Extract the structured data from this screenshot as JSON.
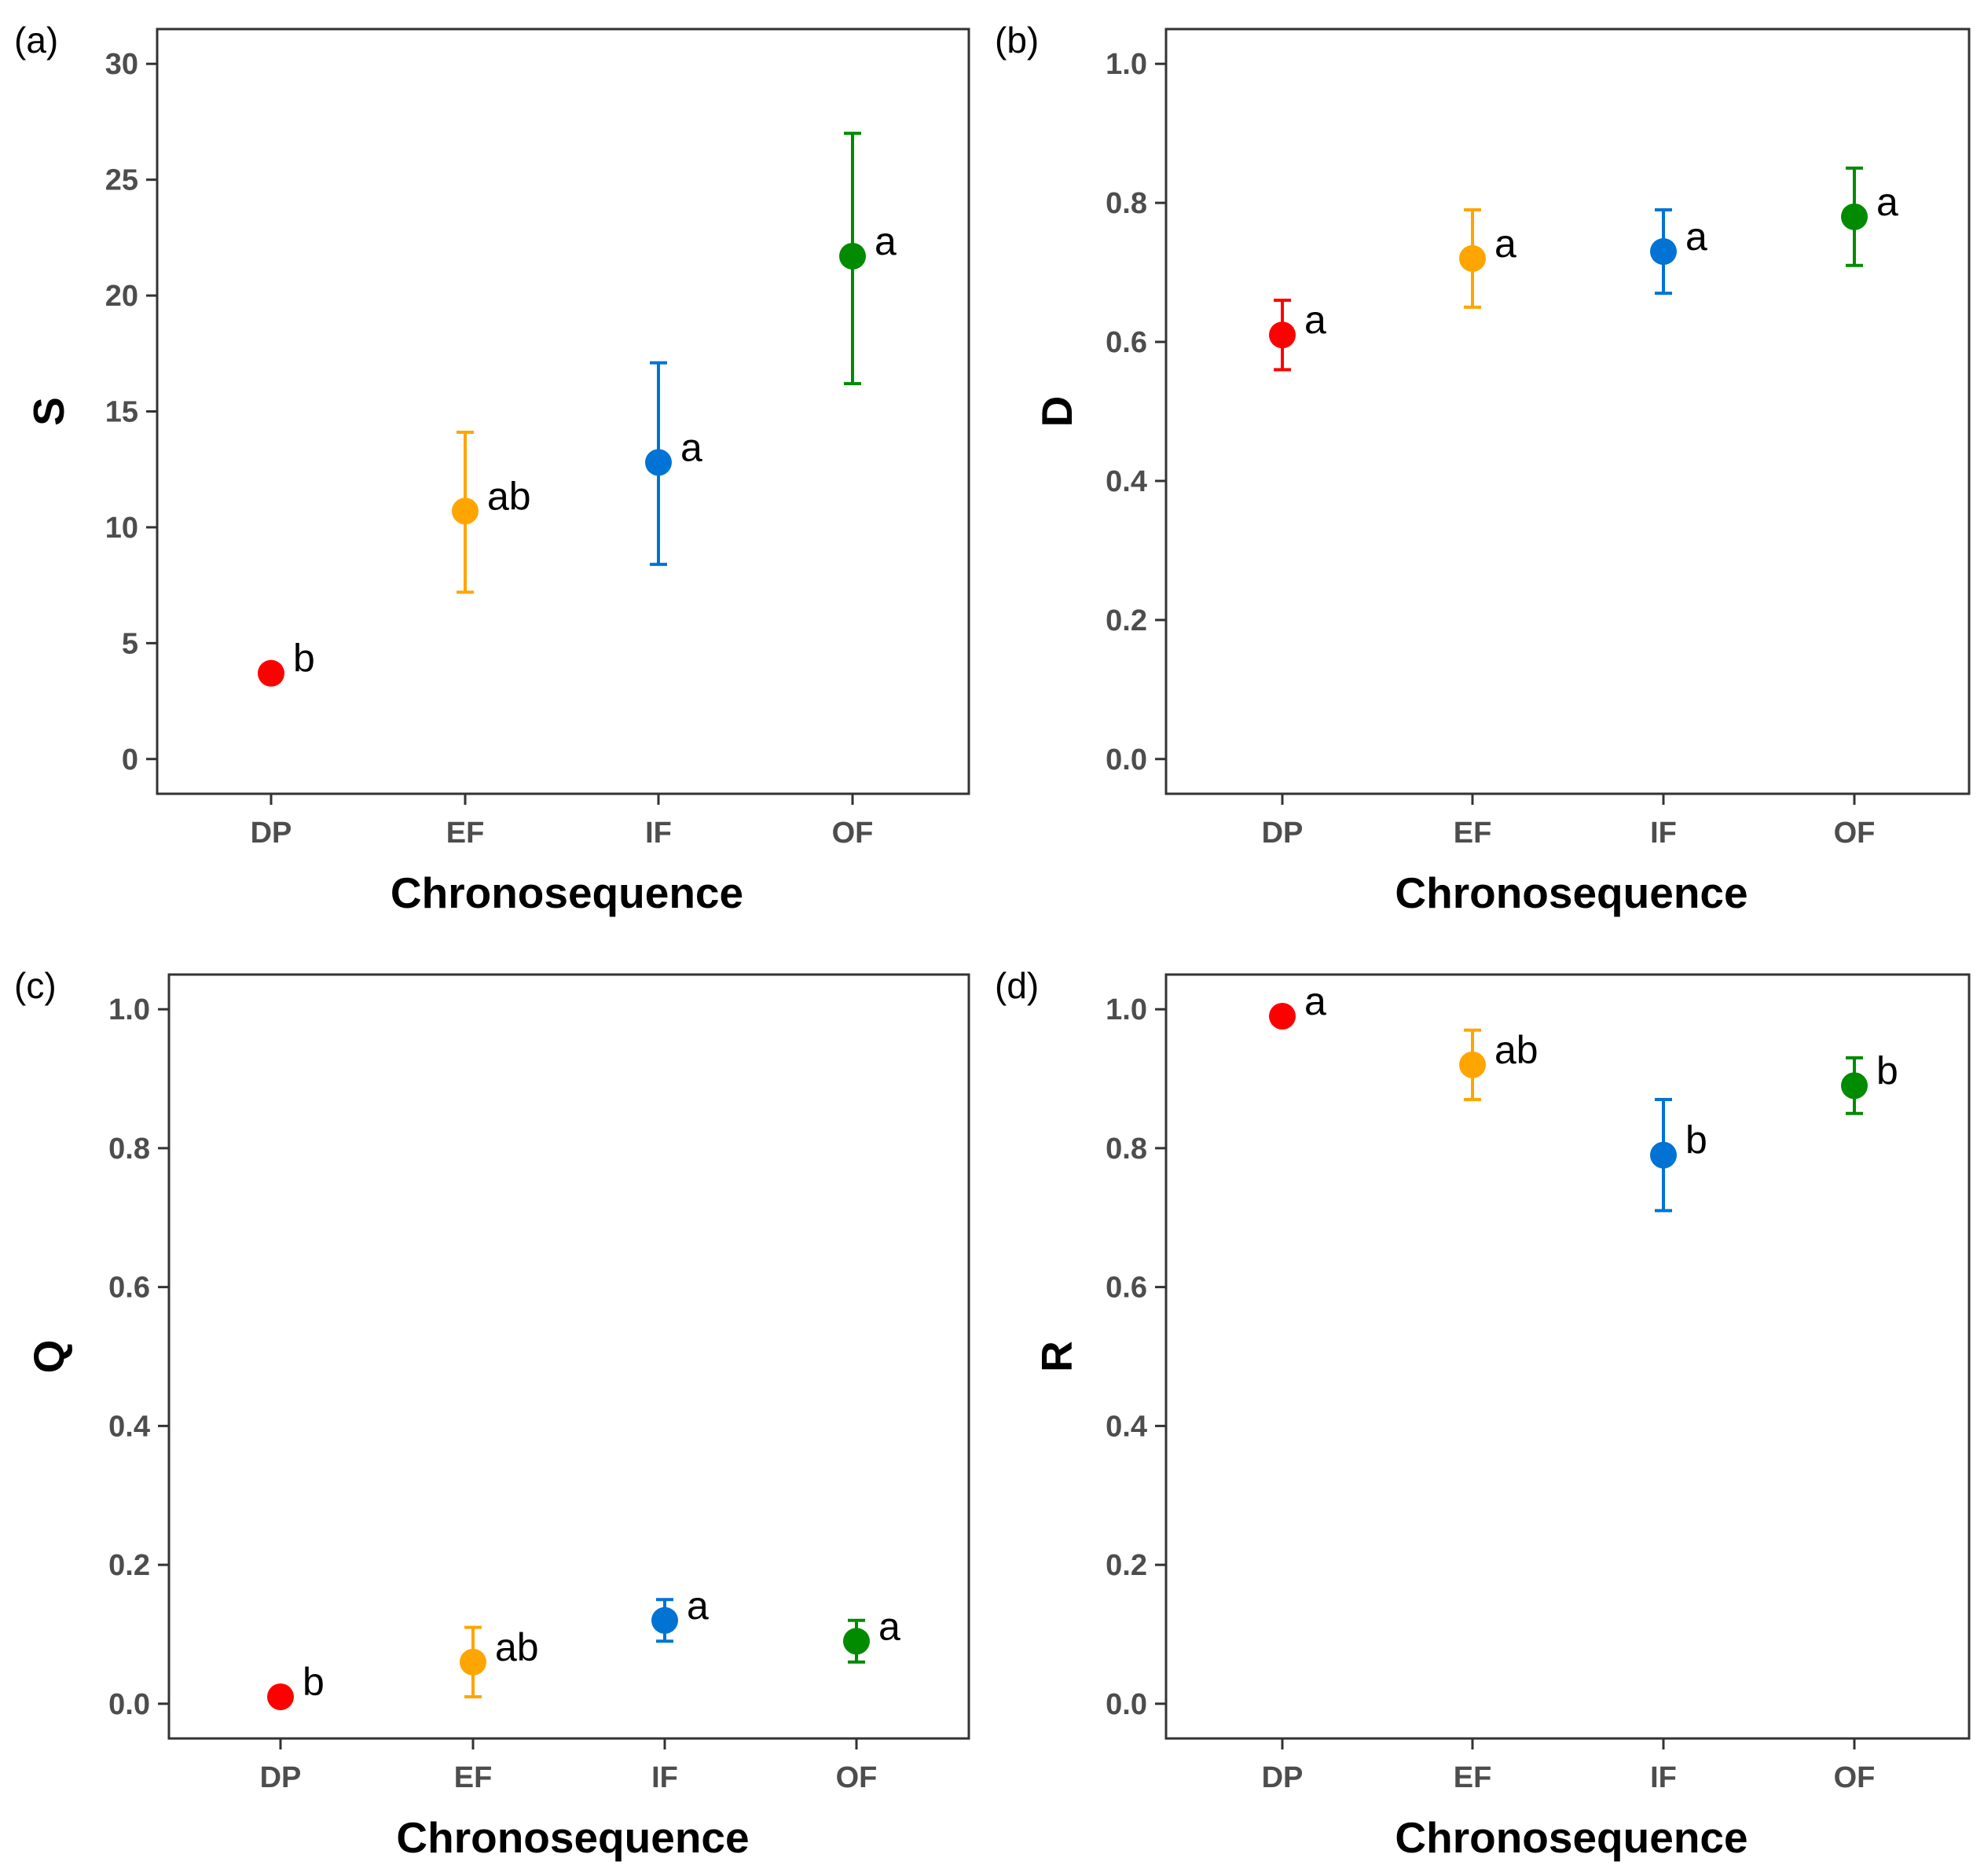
{
  "colors": {
    "DP": "#ff0000",
    "EF": "#ffa500",
    "IF": "#0073d4",
    "OF": "#008b00"
  },
  "chart_data": [
    {
      "type": "scatter",
      "panel": "(a)",
      "xlabel": "Chronosequence",
      "ylabel": "S",
      "ylim": [
        -1.5,
        31.5
      ],
      "yticks": [
        0,
        5,
        10,
        15,
        20,
        25,
        30
      ],
      "categories": [
        "DP",
        "EF",
        "IF",
        "OF"
      ],
      "points": [
        {
          "category": "DP",
          "mean": 3.7,
          "low": 3.7,
          "high": 3.7,
          "label": "b"
        },
        {
          "category": "EF",
          "mean": 10.7,
          "low": 7.2,
          "high": 14.1,
          "label": "ab"
        },
        {
          "category": "IF",
          "mean": 12.8,
          "low": 8.4,
          "high": 17.1,
          "label": "a"
        },
        {
          "category": "OF",
          "mean": 21.7,
          "low": 16.2,
          "high": 27.0,
          "label": "a"
        }
      ]
    },
    {
      "type": "scatter",
      "panel": "(b)",
      "xlabel": "Chronosequence",
      "ylabel": "D",
      "ylim": [
        -0.05,
        1.05
      ],
      "yticks": [
        0.0,
        0.2,
        0.4,
        0.6,
        0.8,
        1.0
      ],
      "categories": [
        "DP",
        "EF",
        "IF",
        "OF"
      ],
      "points": [
        {
          "category": "DP",
          "mean": 0.61,
          "low": 0.56,
          "high": 0.66,
          "label": "a"
        },
        {
          "category": "EF",
          "mean": 0.72,
          "low": 0.65,
          "high": 0.79,
          "label": "a"
        },
        {
          "category": "IF",
          "mean": 0.73,
          "low": 0.67,
          "high": 0.79,
          "label": "a"
        },
        {
          "category": "OF",
          "mean": 0.78,
          "low": 0.71,
          "high": 0.85,
          "label": "a"
        }
      ]
    },
    {
      "type": "scatter",
      "panel": "(c)",
      "xlabel": "Chronosequence",
      "ylabel": "Q",
      "ylim": [
        -0.05,
        1.05
      ],
      "yticks": [
        0.0,
        0.2,
        0.4,
        0.6,
        0.8,
        1.0
      ],
      "categories": [
        "DP",
        "EF",
        "IF",
        "OF"
      ],
      "points": [
        {
          "category": "DP",
          "mean": 0.01,
          "low": 0.01,
          "high": 0.01,
          "label": "b"
        },
        {
          "category": "EF",
          "mean": 0.06,
          "low": 0.01,
          "high": 0.11,
          "label": "ab"
        },
        {
          "category": "IF",
          "mean": 0.12,
          "low": 0.09,
          "high": 0.15,
          "label": "a"
        },
        {
          "category": "OF",
          "mean": 0.09,
          "low": 0.06,
          "high": 0.12,
          "label": "a"
        }
      ]
    },
    {
      "type": "scatter",
      "panel": "(d)",
      "xlabel": "Chronosequence",
      "ylabel": "R",
      "ylim": [
        -0.05,
        1.05
      ],
      "yticks": [
        0.0,
        0.2,
        0.4,
        0.6,
        0.8,
        1.0
      ],
      "categories": [
        "DP",
        "EF",
        "IF",
        "OF"
      ],
      "points": [
        {
          "category": "DP",
          "mean": 0.99,
          "low": 0.99,
          "high": 0.99,
          "label": "a"
        },
        {
          "category": "EF",
          "mean": 0.92,
          "low": 0.87,
          "high": 0.97,
          "label": "ab"
        },
        {
          "category": "IF",
          "mean": 0.79,
          "low": 0.71,
          "high": 0.87,
          "label": "b"
        },
        {
          "category": "OF",
          "mean": 0.89,
          "low": 0.85,
          "high": 0.93,
          "label": "b"
        }
      ]
    }
  ]
}
